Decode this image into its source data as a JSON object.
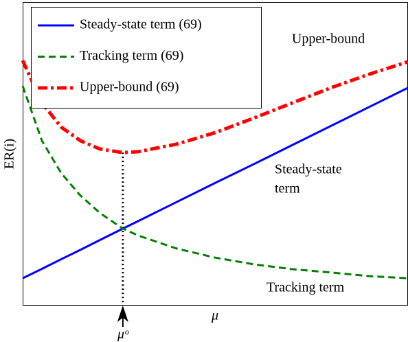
{
  "chart_data": {
    "type": "line",
    "xlabel": "μ",
    "ylabel": "ER(i)",
    "xlim": [
      0,
      1
    ],
    "ylim": [
      0,
      1
    ],
    "x": [
      0,
      0.05,
      0.1,
      0.15,
      0.2,
      0.26,
      0.3,
      0.4,
      0.5,
      0.6,
      0.7,
      0.8,
      0.9,
      1.0
    ],
    "series": [
      {
        "name": "Steady-state term (69)",
        "color": "#0000ff",
        "style": "solid",
        "values": [
          0.088,
          0.119,
          0.151,
          0.182,
          0.214,
          0.252,
          0.277,
          0.34,
          0.403,
          0.465,
          0.528,
          0.591,
          0.654,
          0.717
        ]
      },
      {
        "name": "Tracking term (69)",
        "color": "#008000",
        "style": "dashed",
        "values": [
          0.723,
          0.542,
          0.435,
          0.361,
          0.304,
          0.252,
          0.229,
          0.186,
          0.156,
          0.134,
          0.118,
          0.107,
          0.095,
          0.088
        ]
      },
      {
        "name": "Upper-bound (69)",
        "color": "#ff0000",
        "style": "dashdot",
        "values": [
          0.807,
          0.667,
          0.587,
          0.542,
          0.515,
          0.503,
          0.506,
          0.531,
          0.569,
          0.617,
          0.667,
          0.717,
          0.762,
          0.803
        ]
      }
    ],
    "optimum": {
      "label": "μᵒ",
      "x": 0.26
    },
    "annotations": [
      "Upper-bound",
      "Steady-state",
      "term",
      "Tracking term"
    ],
    "legend": "upper left"
  }
}
